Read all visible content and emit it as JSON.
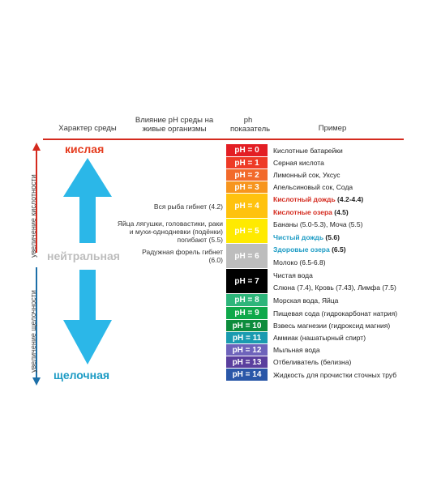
{
  "headers": {
    "environment": "Характер среды",
    "influence": "Влияние pH среды на живые организмы",
    "ph": "ph показатель",
    "example": "Пример"
  },
  "sides": {
    "acid_axis": "увеличение кислотности",
    "alkali_axis": "увеличение щелочности",
    "acid_word": "кислая",
    "neutral_word": "нейтральная",
    "alkali_word": "щелочная"
  },
  "colors": {
    "accent_red": "#d42a1e",
    "arrow": "#2bb7e8",
    "acid_word": "#e53a1c",
    "neutral_word": "#bdbdbd",
    "alkali_word": "#1c9bc4"
  },
  "ph_scale": [
    {
      "label": "pH = 0",
      "color": "#e31e24"
    },
    {
      "label": "pH = 1",
      "color": "#ee3a26"
    },
    {
      "label": "pH = 2",
      "color": "#f26a2b"
    },
    {
      "label": "pH = 3",
      "color": "#f7951e"
    },
    {
      "label": "pH = 4",
      "color": "#ffc20e"
    },
    {
      "label": "pH = 5",
      "color": "#ffea00"
    },
    {
      "label": "pH = 6",
      "color": "#bdbdbd"
    },
    {
      "label": "pH = 7",
      "color": "#000000"
    },
    {
      "label": "pH = 8",
      "color": "#2db57a"
    },
    {
      "label": "pH = 9",
      "color": "#0ea84a"
    },
    {
      "label": "pH = 10",
      "color": "#0c8c3c"
    },
    {
      "label": "pH = 11",
      "color": "#1a9bb0"
    },
    {
      "label": "pH = 12",
      "color": "#6e63bb"
    },
    {
      "label": "pH = 13",
      "color": "#5a3f9e"
    },
    {
      "label": "pH = 14",
      "color": "#2a57a8"
    }
  ],
  "influence": {
    "fish": "Вся рыба гибнет (4.2)",
    "frogs": "Яйца лягушки, головастики, раки и мухи-однодневки (подёнки) погибают (5.5)",
    "trout": "Радужная форель гибнет (6.0)"
  },
  "examples": [
    {
      "text": "Кислотные батарейки",
      "color": "#222222",
      "bold": false
    },
    {
      "text": "Серная кислота",
      "color": "#222222",
      "bold": false
    },
    {
      "text": "Лимонный сок, Уксус",
      "color": "#222222",
      "bold": false
    },
    {
      "text": "Апельсиновый сок, Сода",
      "color": "#222222",
      "bold": false
    },
    {
      "text": "Кислотный дождь",
      "suffix": " (4.2-4.4)",
      "color": "#d42a1e",
      "bold": true
    },
    {
      "text": "Кислотные озера",
      "suffix": " (4.5)",
      "color": "#d42a1e",
      "bold": true
    },
    {
      "text": "Бананы (5.0-5.3), Моча (5.5)",
      "color": "#222222",
      "bold": false
    },
    {
      "text": "Чистый дождь",
      "suffix": " (5.6)",
      "color": "#1c9bc4",
      "bold": true
    },
    {
      "text": "Здоровые озера",
      "suffix": " (6.5)",
      "color": "#1c9bc4",
      "bold": true
    },
    {
      "text": "Молоко (6.5-6.8)",
      "color": "#222222",
      "bold": false
    },
    {
      "text": "Чистая вода",
      "color": "#222222",
      "bold": false
    },
    {
      "text": "Слюна (7.4), Кровь (7.43), Лимфа (7.5)",
      "color": "#222222",
      "bold": false
    },
    {
      "text": "Морская вода, Яйца",
      "color": "#222222",
      "bold": false
    },
    {
      "text": "Пищевая сода (гидрокарбонат натрия)",
      "color": "#222222",
      "bold": false
    },
    {
      "text": "Взвесь магнезии (гидроксид магния)",
      "color": "#222222",
      "bold": false
    },
    {
      "text": "Аммиак (нашатырный спирт)",
      "color": "#222222",
      "bold": false
    },
    {
      "text": "Мыльная вода",
      "color": "#222222",
      "bold": false
    },
    {
      "text": "Отбеливатель (белизна)",
      "color": "#222222",
      "bold": false
    },
    {
      "text": "Жидкость для прочистки сточных труб",
      "color": "#222222",
      "bold": false
    }
  ]
}
